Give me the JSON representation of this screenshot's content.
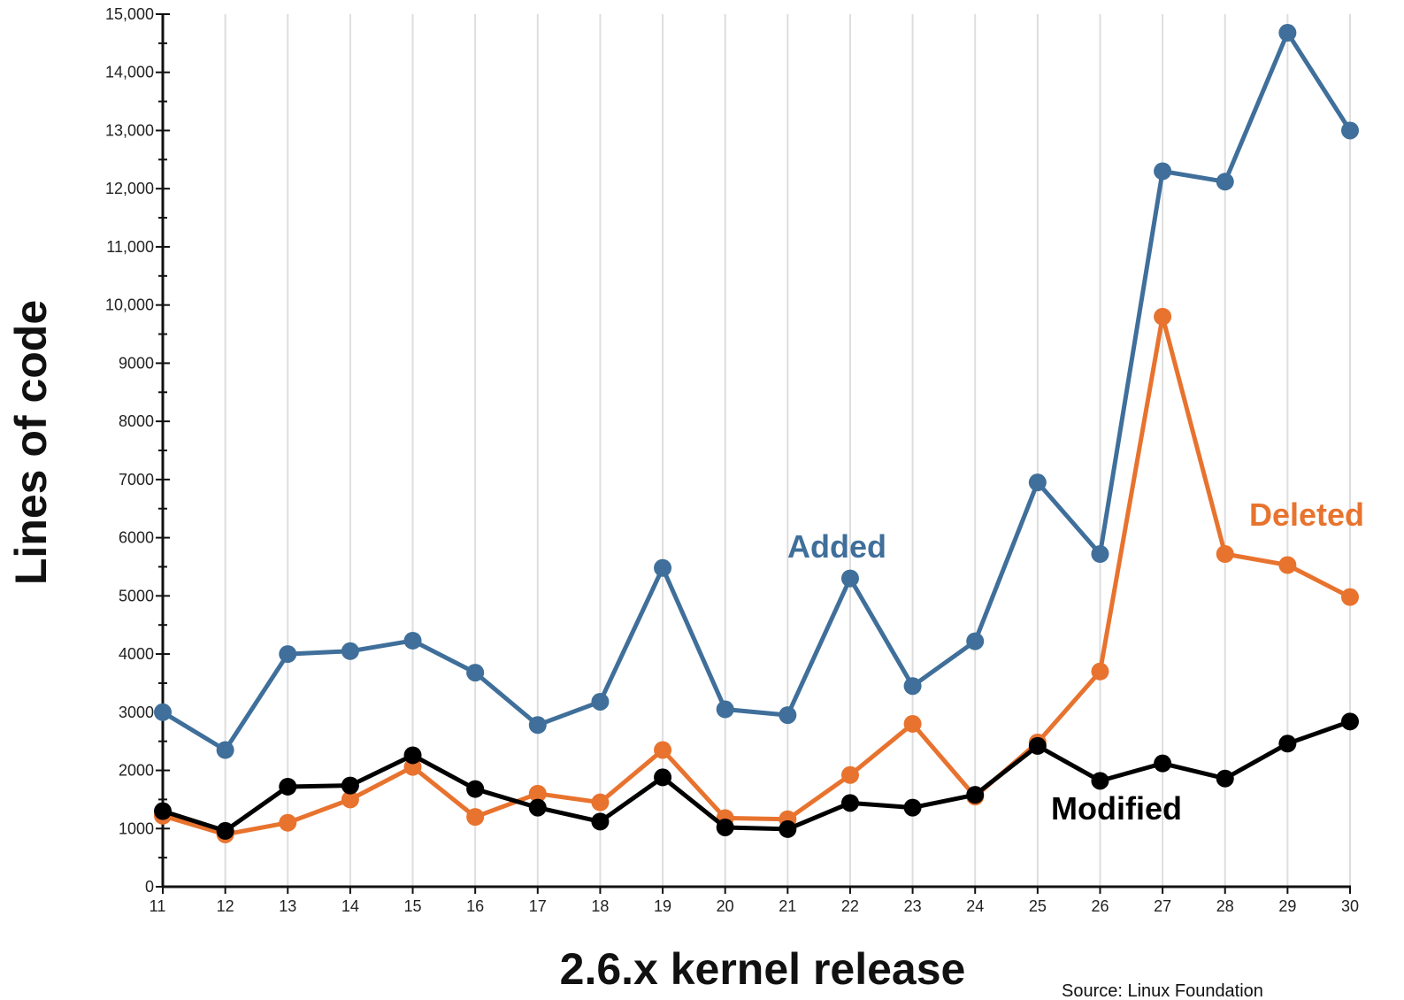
{
  "chart_data": {
    "type": "line",
    "title": "",
    "xlabel": "2.6.x kernel release",
    "ylabel": "Lines of code",
    "source": "Source:  Linux Foundation",
    "x": [
      "11",
      "12",
      "13",
      "14",
      "15",
      "16",
      "17",
      "18",
      "19",
      "20",
      "21",
      "22",
      "23",
      "24",
      "25",
      "26",
      "27",
      "28",
      "29",
      "30"
    ],
    "y_ticks": [
      "0",
      "1000",
      "2000",
      "3000",
      "4000",
      "5000",
      "6000",
      "7000",
      "8000",
      "9000",
      "10,000",
      "11,000",
      "12,000",
      "13,000",
      "14,000",
      "15,000"
    ],
    "ylim": [
      0,
      15000
    ],
    "grid": "vertical",
    "series": [
      {
        "name": "Added",
        "color": "#3f6f9a",
        "values": [
          3000,
          2350,
          4000,
          4050,
          4230,
          3680,
          2780,
          3180,
          5480,
          3050,
          2950,
          5300,
          3450,
          4220,
          6950,
          5720,
          12300,
          12120,
          14680,
          13000
        ]
      },
      {
        "name": "Deleted",
        "color": "#e8732e",
        "values": [
          1220,
          900,
          1100,
          1500,
          2060,
          1200,
          1600,
          1450,
          2350,
          1180,
          1160,
          1920,
          2800,
          1550,
          2480,
          3700,
          9800,
          5720,
          5530,
          4980
        ]
      },
      {
        "name": "Modified",
        "color": "#000000",
        "values": [
          1300,
          960,
          1720,
          1740,
          2260,
          1680,
          1360,
          1120,
          1880,
          1020,
          990,
          1440,
          1360,
          1580,
          2420,
          1820,
          2120,
          1860,
          2460,
          2840
        ]
      }
    ],
    "annotations": [
      "Added",
      "Deleted",
      "Modified"
    ]
  }
}
